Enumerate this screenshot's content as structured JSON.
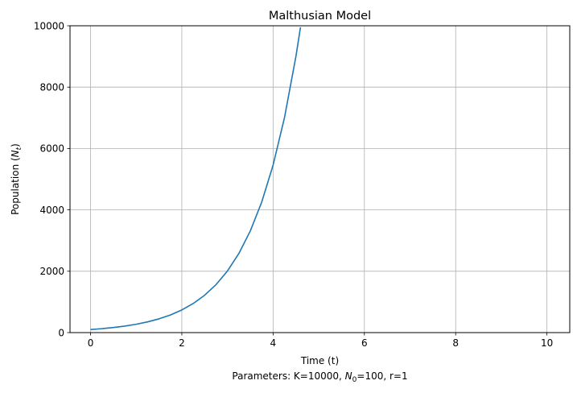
{
  "chart_data": {
    "type": "line",
    "title": "Malthusian Model",
    "xlabel": "Time (t)",
    "ylabel_prefix": "Population (",
    "ylabel_var": "N",
    "ylabel_sub": "t",
    "ylabel_suffix": ")",
    "caption_prefix": "Parameters: K=10000, ",
    "caption_var": "N",
    "caption_sub": "0",
    "caption_suffix": "=100, r=1",
    "xlim": [
      -0.45,
      10.5
    ],
    "ylim": [
      0,
      10000
    ],
    "xticks": [
      0,
      2,
      4,
      6,
      8,
      10
    ],
    "yticks": [
      0,
      2000,
      4000,
      6000,
      8000,
      10000
    ],
    "grid": true,
    "series": [
      {
        "color": "#1f77b4",
        "x": [
          0,
          0.25,
          0.5,
          0.75,
          1,
          1.25,
          1.5,
          1.75,
          2,
          2.25,
          2.5,
          2.75,
          3,
          3.25,
          3.5,
          3.75,
          4,
          4.25,
          4.5,
          4.6
        ],
        "y": [
          100,
          128,
          165,
          212,
          272,
          349,
          448,
          575,
          739,
          949,
          1218,
          1564,
          2009,
          2579,
          3312,
          4252,
          5460,
          7011,
          9002,
          9950
        ]
      }
    ]
  }
}
